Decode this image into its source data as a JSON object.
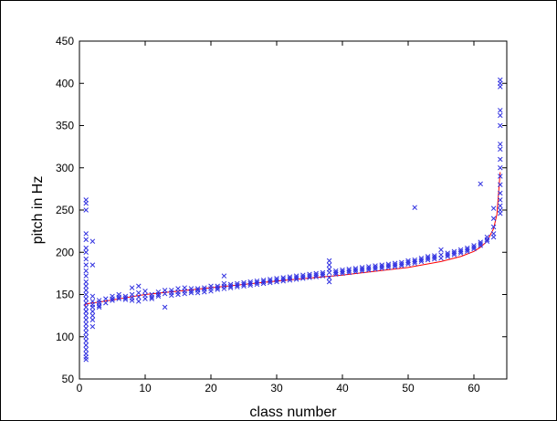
{
  "chart_data": {
    "type": "scatter",
    "title": "",
    "xlabel": "class number",
    "ylabel": "pitch in Hz",
    "xlim": [
      0,
      65
    ],
    "ylim": [
      50,
      450
    ],
    "xticks": [
      0,
      10,
      20,
      30,
      40,
      50,
      60
    ],
    "yticks": [
      50,
      100,
      150,
      200,
      250,
      300,
      350,
      400,
      450
    ],
    "grid": false,
    "marker": "x",
    "colors": {
      "points": "#2f2fe0",
      "trend": "#ff0000"
    },
    "points_x": [
      1,
      1,
      1,
      1,
      1,
      1,
      1,
      1,
      1,
      1,
      1,
      1,
      1,
      1,
      1,
      1,
      1,
      1,
      1,
      1,
      1,
      1,
      1,
      1,
      1,
      1,
      1,
      1,
      1,
      1,
      1,
      1,
      2,
      2,
      2,
      2,
      2,
      2,
      2,
      2,
      2,
      2,
      3,
      3,
      3,
      3,
      4,
      4,
      5,
      5,
      5,
      6,
      6,
      6,
      7,
      7,
      7,
      8,
      8,
      8,
      8,
      9,
      9,
      9,
      9,
      10,
      10,
      10,
      11,
      11,
      11,
      12,
      12,
      12,
      13,
      13,
      13,
      14,
      14,
      14,
      15,
      15,
      15,
      16,
      16,
      16,
      17,
      17,
      17,
      18,
      18,
      18,
      19,
      19,
      19,
      20,
      20,
      20,
      21,
      21,
      21,
      22,
      22,
      22,
      22,
      23,
      23,
      23,
      24,
      24,
      24,
      25,
      25,
      25,
      26,
      26,
      26,
      27,
      27,
      27,
      28,
      28,
      28,
      29,
      29,
      29,
      30,
      30,
      30,
      31,
      31,
      31,
      32,
      32,
      32,
      33,
      33,
      33,
      34,
      34,
      34,
      35,
      35,
      35,
      36,
      36,
      36,
      37,
      37,
      37,
      38,
      38,
      38,
      38,
      38,
      38,
      39,
      39,
      39,
      40,
      40,
      40,
      41,
      41,
      41,
      42,
      42,
      42,
      43,
      43,
      43,
      44,
      44,
      44,
      45,
      45,
      45,
      46,
      46,
      46,
      47,
      47,
      47,
      48,
      48,
      48,
      49,
      49,
      49,
      50,
      50,
      50,
      51,
      51,
      51,
      51,
      52,
      52,
      52,
      53,
      53,
      53,
      54,
      54,
      54,
      55,
      55,
      55,
      56,
      56,
      56,
      57,
      57,
      57,
      58,
      58,
      58,
      59,
      59,
      59,
      60,
      60,
      60,
      61,
      61,
      61,
      61,
      62,
      62,
      62,
      63,
      63,
      63,
      63,
      63,
      64,
      64,
      64,
      64,
      64,
      64,
      64,
      64,
      64,
      64,
      64,
      64,
      64,
      64,
      64,
      64,
      64
    ],
    "points_y": [
      262,
      258,
      250,
      222,
      215,
      205,
      200,
      192,
      185,
      178,
      172,
      165,
      160,
      155,
      150,
      145,
      140,
      135,
      130,
      125,
      120,
      115,
      110,
      105,
      100,
      95,
      90,
      85,
      80,
      76,
      73,
      130,
      213,
      185,
      148,
      142,
      138,
      135,
      130,
      125,
      120,
      112,
      143,
      140,
      137,
      135,
      145,
      140,
      148,
      145,
      143,
      150,
      147,
      145,
      148,
      146,
      144,
      158,
      150,
      146,
      143,
      160,
      152,
      147,
      142,
      154,
      149,
      145,
      150,
      147,
      145,
      153,
      150,
      148,
      155,
      151,
      135,
      155,
      152,
      149,
      157,
      153,
      150,
      158,
      154,
      151,
      157,
      154,
      152,
      157,
      155,
      152,
      158,
      156,
      153,
      160,
      157,
      154,
      160,
      158,
      156,
      172,
      163,
      160,
      157,
      162,
      160,
      158,
      163,
      161,
      159,
      164,
      162,
      160,
      165,
      163,
      161,
      166,
      164,
      162,
      167,
      165,
      163,
      168,
      166,
      164,
      169,
      167,
      165,
      170,
      168,
      166,
      171,
      169,
      167,
      172,
      170,
      168,
      173,
      171,
      169,
      174,
      172,
      170,
      175,
      173,
      171,
      176,
      174,
      172,
      190,
      185,
      180,
      176,
      170,
      165,
      178,
      176,
      174,
      179,
      177,
      175,
      180,
      178,
      176,
      181,
      179,
      177,
      182,
      180,
      178,
      183,
      181,
      179,
      184,
      182,
      180,
      185,
      183,
      181,
      186,
      184,
      182,
      187,
      185,
      183,
      188,
      186,
      184,
      190,
      188,
      186,
      253,
      191,
      189,
      187,
      193,
      191,
      189,
      195,
      193,
      191,
      196,
      194,
      192,
      203,
      197,
      193,
      199,
      197,
      195,
      201,
      199,
      197,
      203,
      201,
      199,
      205,
      203,
      201,
      208,
      206,
      204,
      281,
      212,
      210,
      208,
      218,
      215,
      213,
      252,
      240,
      230,
      222,
      218,
      404,
      400,
      396,
      368,
      362,
      350,
      328,
      322,
      310,
      300,
      290,
      280,
      270,
      262,
      255,
      250,
      246
    ],
    "trend": {
      "x": [
        0.8,
        1,
        3,
        10,
        20,
        30,
        40,
        50,
        55,
        58,
        60,
        61,
        62,
        63,
        63.5,
        64
      ],
      "y": [
        136,
        139,
        141,
        150,
        158,
        166,
        173,
        182,
        189,
        195,
        201,
        206,
        213,
        228,
        245,
        295
      ]
    }
  }
}
